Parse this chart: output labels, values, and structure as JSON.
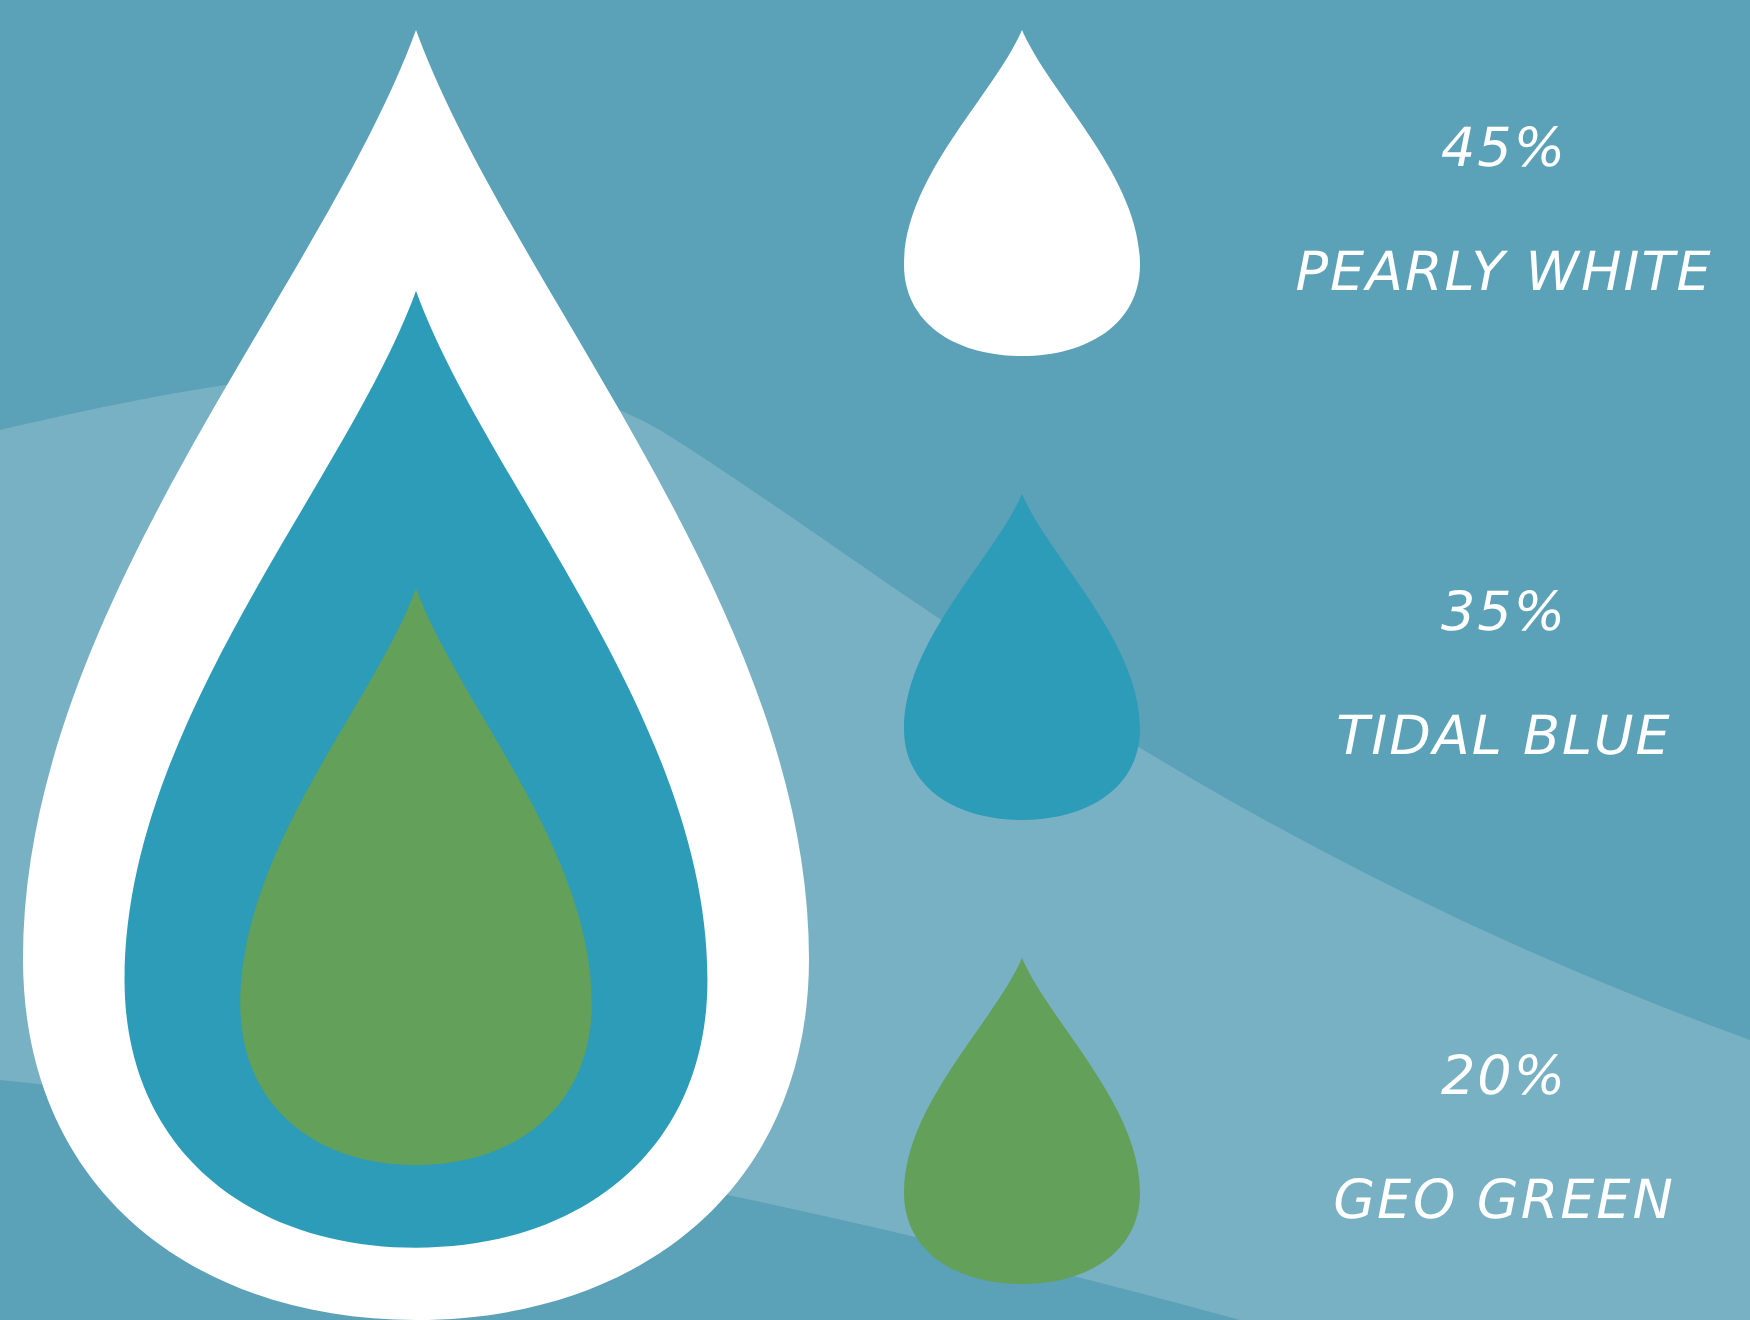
{
  "chart_data": {
    "type": "other",
    "categories": [
      "PEARLY WHITE",
      "TIDAL BLUE",
      "GEO GREEN"
    ],
    "values": [
      45,
      35,
      20
    ],
    "value_labels": [
      "45%",
      "35%",
      "20%"
    ],
    "colors": [
      "#ffffff",
      "#2c9cb8",
      "#63a05a"
    ]
  }
}
